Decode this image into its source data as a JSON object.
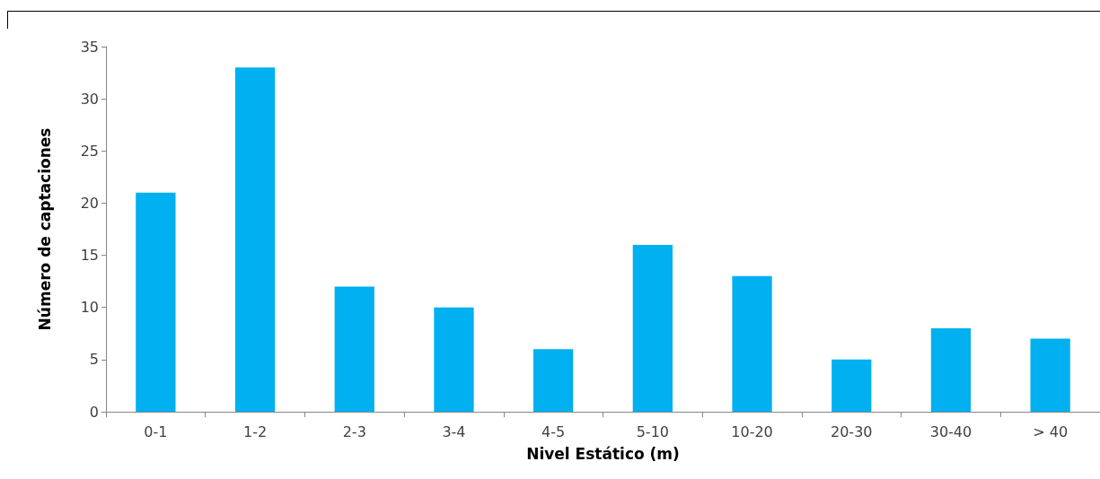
{
  "chart_data": {
    "type": "bar",
    "xlabel": "Nivel Estático (m)",
    "ylabel": "Número de captaciones",
    "categories": [
      "0-1",
      "1-2",
      "2-3",
      "3-4",
      "4-5",
      "5-10",
      "10-20",
      "20-30",
      "30-40",
      "> 40"
    ],
    "values": [
      21,
      33,
      12,
      10,
      6,
      16,
      13,
      5,
      8,
      7
    ],
    "color": "#00b0f0",
    "ylim": [
      0,
      35
    ],
    "yticks": [
      0,
      5,
      10,
      15,
      20,
      25,
      30,
      35
    ],
    "grid": false
  }
}
